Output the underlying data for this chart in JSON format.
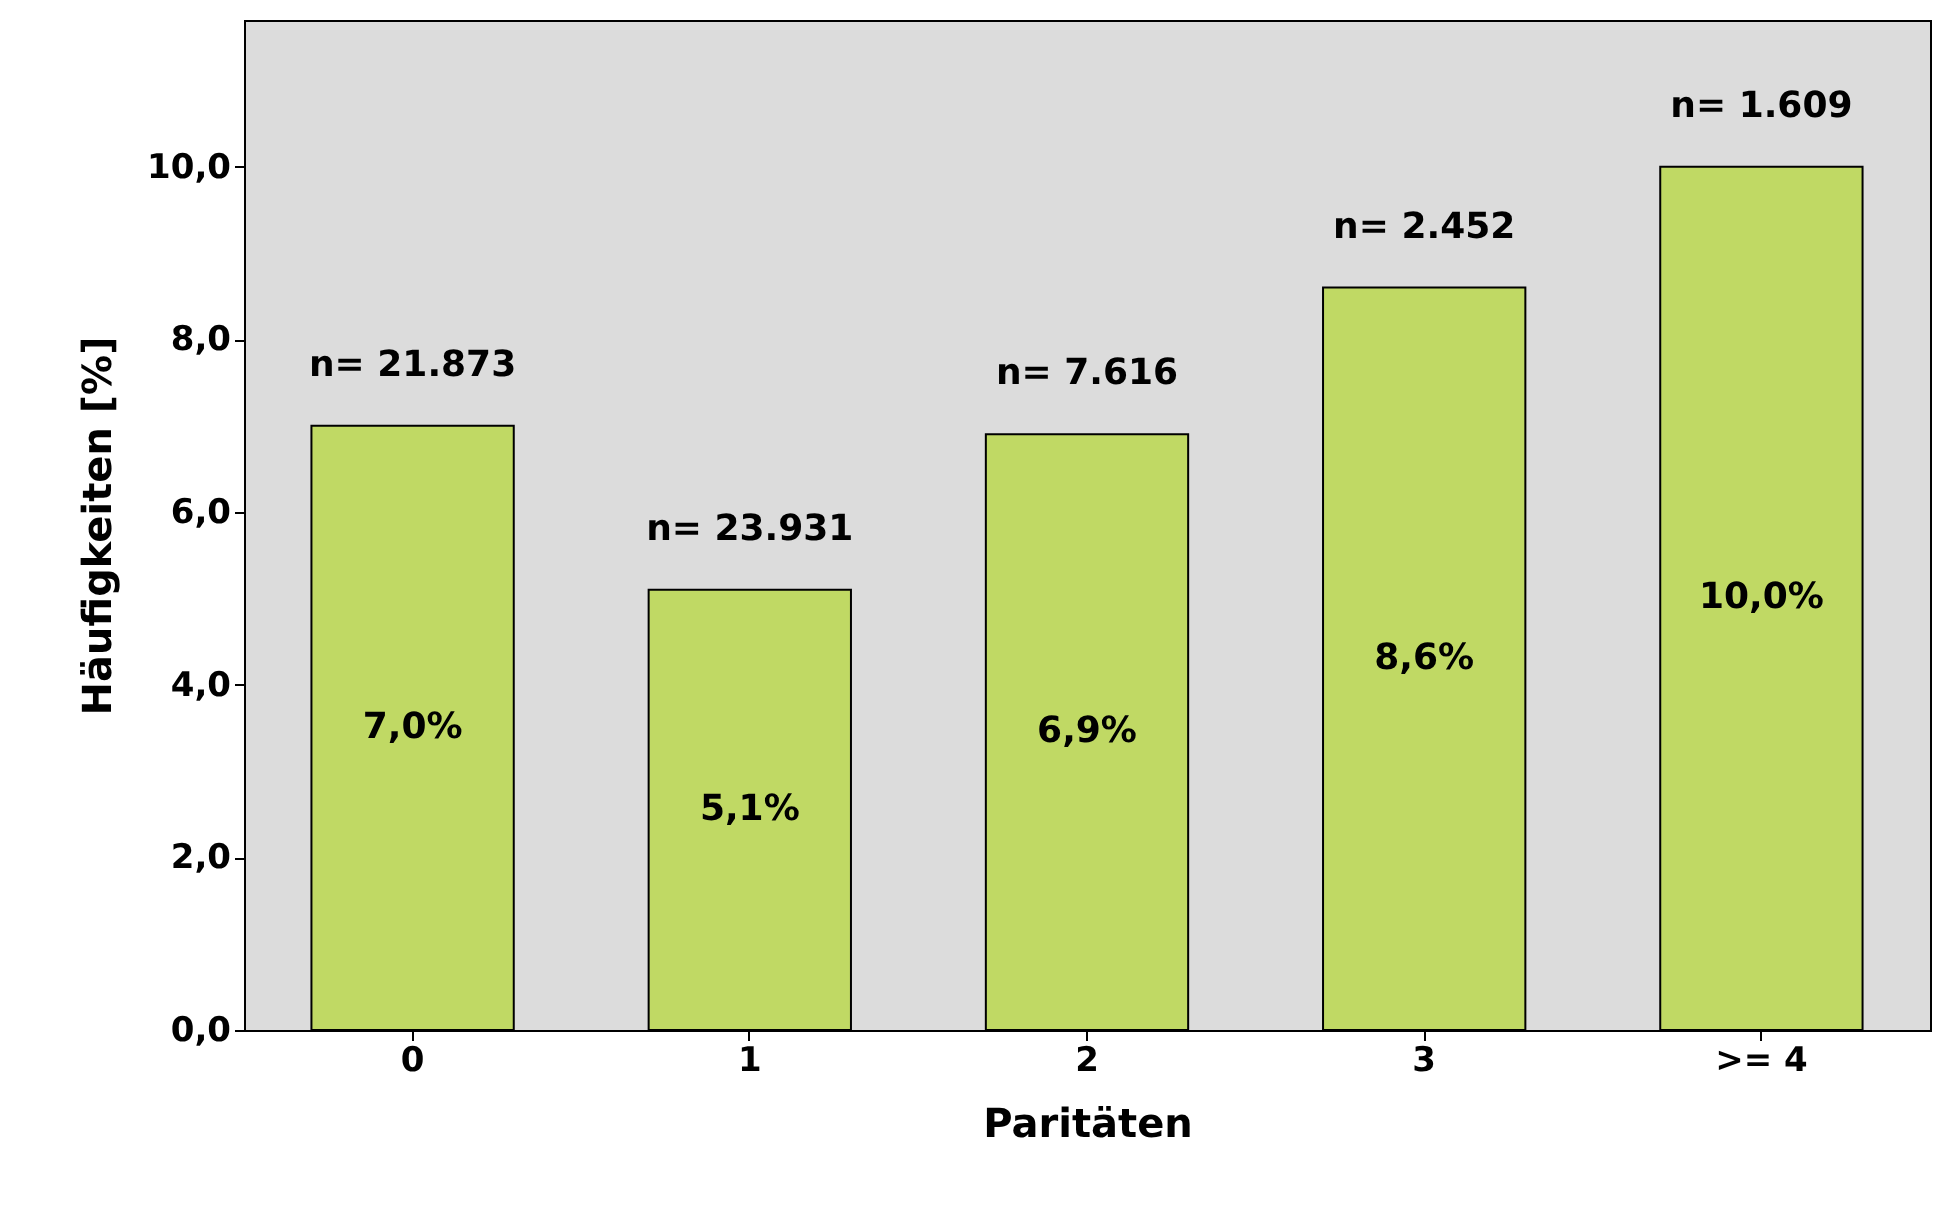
{
  "chart_data": {
    "type": "bar",
    "categories": [
      "0",
      "1",
      "2",
      "3",
      ">= 4"
    ],
    "values": [
      7.0,
      5.1,
      6.9,
      8.6,
      10.0
    ],
    "value_labels": [
      "7,0%",
      "5,1%",
      "6,9%",
      "8,6%",
      "10,0%"
    ],
    "color": "#c0d964",
    "xlabel": "Paritäten",
    "ylabel": "Häufigkeiten [%]",
    "ylim": [
      0,
      11.7
    ],
    "yticks": [
      {
        "value": 0,
        "label": "0,0"
      },
      {
        "value": 2,
        "label": "2,0"
      },
      {
        "value": 4,
        "label": "4,0"
      },
      {
        "value": 6,
        "label": "6,0"
      },
      {
        "value": 8,
        "label": "8,0"
      },
      {
        "value": 10,
        "label": "10,0"
      }
    ],
    "annotations": [
      {
        "text": "n= 21.873",
        "x": "0",
        "y": 7.0
      },
      {
        "text": "n= 23.931",
        "x": "1",
        "y": 5.1
      },
      {
        "text": "n= 7.616",
        "x": "2",
        "y": 6.9
      },
      {
        "text": "n= 2.452",
        "x": "3",
        "y": 8.6
      },
      {
        "text": "n= 1.609",
        "x": ">= 4",
        "y": 10.0
      }
    ],
    "grid": false
  }
}
